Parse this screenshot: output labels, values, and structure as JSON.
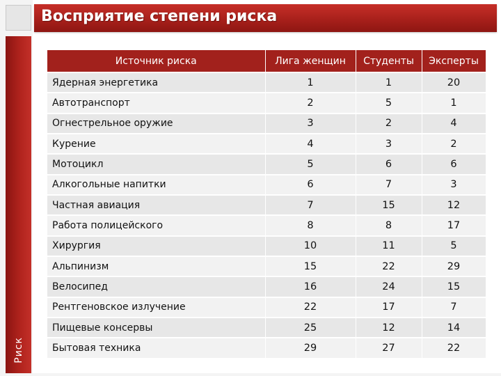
{
  "slide": {
    "title": "Восприятие степени риска",
    "side_label": "Риск"
  },
  "table": {
    "headers": [
      "Источник риска",
      "Лига женщин",
      "Студенты",
      "Эксперты"
    ],
    "rows": [
      {
        "source": "Ядерная энергетика",
        "league": "1",
        "students": "1",
        "experts": "20"
      },
      {
        "source": "Автотранспорт",
        "league": "2",
        "students": "5",
        "experts": "1"
      },
      {
        "source": "Огнестрельное оружие",
        "league": "3",
        "students": "2",
        "experts": "4"
      },
      {
        "source": "Курение",
        "league": "4",
        "students": "3",
        "experts": "2"
      },
      {
        "source": "Мотоцикл",
        "league": "5",
        "students": "6",
        "experts": "6"
      },
      {
        "source": "Алкогольные напитки",
        "league": "6",
        "students": "7",
        "experts": "3"
      },
      {
        "source": "Частная авиация",
        "league": "7",
        "students": "15",
        "experts": "12"
      },
      {
        "source": "Работа полицейского",
        "league": "8",
        "students": "8",
        "experts": "17"
      },
      {
        "source": "Хирургия",
        "league": "10",
        "students": "11",
        "experts": "5"
      },
      {
        "source": "Альпинизм",
        "league": "15",
        "students": "22",
        "experts": "29"
      },
      {
        "source": "Велосипед",
        "league": "16",
        "students": "24",
        "experts": "15"
      },
      {
        "source": "Рентгеновское излучение",
        "league": "22",
        "students": "17",
        "experts": "7"
      },
      {
        "source": "Пищевые консервы",
        "league": "25",
        "students": "12",
        "experts": "14"
      },
      {
        "source": "Бытовая техника",
        "league": "29",
        "students": "27",
        "experts": "22"
      }
    ]
  },
  "colors": {
    "accent": "#a2211c",
    "row_light": "#f2f2f2",
    "row_dark": "#e7e7e7"
  }
}
